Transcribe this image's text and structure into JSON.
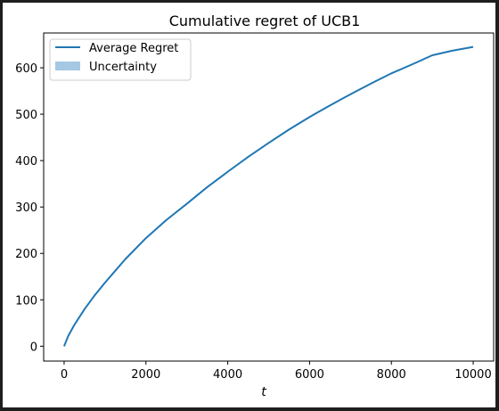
{
  "chart_data": {
    "type": "line",
    "title": "Cumulative regret of UCB1",
    "xlabel": "t",
    "ylabel": "",
    "xlim": [
      -500,
      10500
    ],
    "ylim": [
      -32,
      675
    ],
    "xticks": [
      0,
      2000,
      4000,
      6000,
      8000,
      10000
    ],
    "yticks": [
      0,
      100,
      200,
      300,
      400,
      500,
      600
    ],
    "xtick_labels": [
      "0",
      "2000",
      "4000",
      "6000",
      "8000",
      "10000"
    ],
    "ytick_labels": [
      "0",
      "100",
      "200",
      "300",
      "400",
      "500",
      "600"
    ],
    "grid": false,
    "legend_position": "top-left",
    "series": [
      {
        "name": "Average Regret",
        "color": "#1f77b4",
        "x": [
          0,
          100,
          250,
          500,
          750,
          1000,
          1500,
          2000,
          2500,
          3000,
          3500,
          4000,
          4500,
          5000,
          5500,
          6000,
          6500,
          7000,
          7500,
          8000,
          8500,
          9000,
          9500,
          10000
        ],
        "y": [
          0,
          22,
          46,
          80,
          110,
          137,
          188,
          233,
          272,
          307,
          343,
          376,
          408,
          438,
          467,
          494,
          519,
          543,
          566,
          588,
          607,
          627,
          637,
          645
        ]
      },
      {
        "name": "Uncertainty",
        "color": "#a6c8e3",
        "kind": "band",
        "x": [],
        "lower": [],
        "upper": []
      }
    ]
  }
}
